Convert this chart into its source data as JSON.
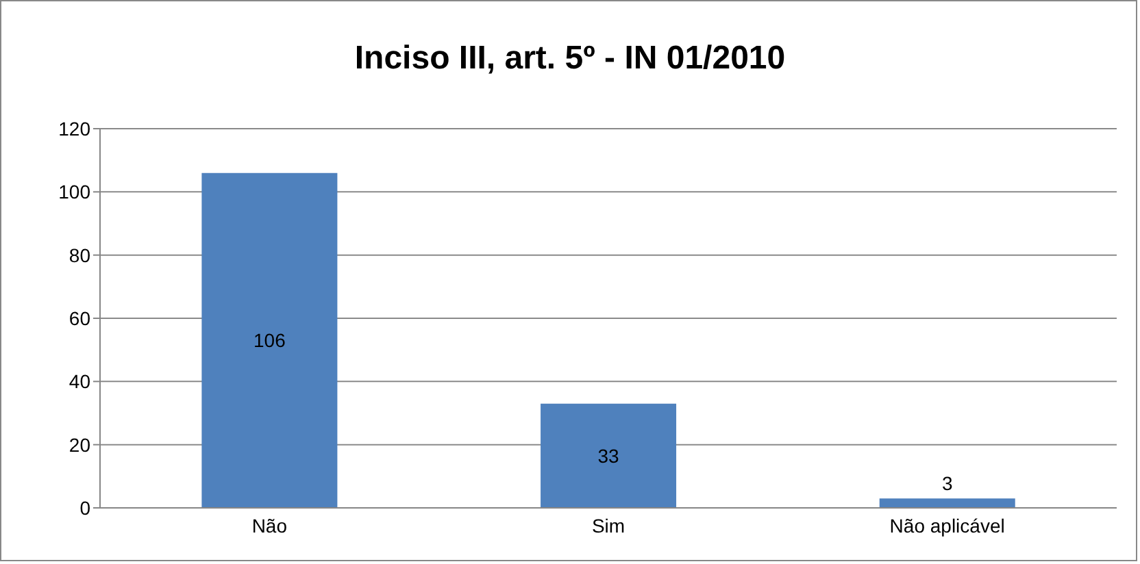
{
  "chart_data": {
    "type": "bar",
    "title": "Inciso III, art. 5º - IN 01/2010",
    "categories": [
      "Não",
      "Sim",
      "Não aplicável"
    ],
    "values": [
      106,
      33,
      3
    ],
    "color": "#4f81bd",
    "ylim": [
      0,
      120
    ],
    "yticks": [
      0,
      20,
      40,
      60,
      80,
      100,
      120
    ],
    "grid": "y",
    "data_labels": true,
    "legend": false
  }
}
